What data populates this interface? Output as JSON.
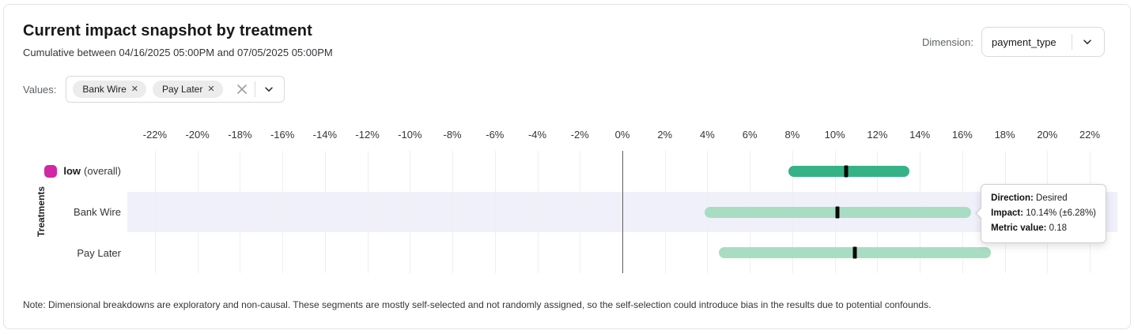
{
  "header": {
    "title": "Current impact snapshot by treatment",
    "subtitle": "Cumulative between 04/16/2025 05:00PM and 07/05/2025 05:00PM",
    "dimension_label": "Dimension:",
    "dimension_value": "payment_type"
  },
  "filters": {
    "values_label": "Values:",
    "chips": [
      "Bank Wire",
      "Pay Later"
    ]
  },
  "chart_data": {
    "type": "interval-bar",
    "y_axis_label": "Treatments",
    "x_tick_labels": [
      "-22%",
      "-20%",
      "-18%",
      "-16%",
      "-14%",
      "-12%",
      "-10%",
      "-8%",
      "-6%",
      "-4%",
      "-2%",
      "0%",
      "2%",
      "4%",
      "6%",
      "8%",
      "10%",
      "12%",
      "14%",
      "16%",
      "18%",
      "20%",
      "22%"
    ],
    "x_ticks": [
      -22,
      -20,
      -18,
      -16,
      -14,
      -12,
      -10,
      -8,
      -6,
      -4,
      -2,
      0,
      2,
      4,
      6,
      8,
      10,
      12,
      14,
      16,
      18,
      20,
      22
    ],
    "xlim": [
      -23.3,
      23.3
    ],
    "zero_line": 0,
    "grid": true,
    "rows": [
      {
        "name": "low",
        "name_suffix": "(overall)",
        "swatch_color": "#d028a6",
        "low": 7.8,
        "high": 13.5,
        "center": 10.55,
        "bar_color": "#36b287",
        "highlighted": false
      },
      {
        "name": "Bank Wire",
        "name_suffix": "",
        "swatch_color": "",
        "low": 3.86,
        "high": 16.42,
        "center": 10.14,
        "bar_color": "#a9ddc3",
        "highlighted": true
      },
      {
        "name": "Pay Later",
        "name_suffix": "",
        "swatch_color": "",
        "low": 4.55,
        "high": 17.35,
        "center": 10.95,
        "bar_color": "#a9ddc3",
        "highlighted": false
      }
    ]
  },
  "tooltip": {
    "row_index": 1,
    "lines": [
      {
        "label": "Direction:",
        "value": "Desired"
      },
      {
        "label": "Impact:",
        "value": "10.14% (±6.28%)"
      },
      {
        "label": "Metric value:",
        "value": "0.18"
      }
    ]
  },
  "note": "Note: Dimensional breakdowns are exploratory and non-causal. These segments are mostly self-selected and not randomly assigned, so the self-selection could introduce bias in the results due to potential confounds.",
  "colors": {
    "highlight_row": "#f0f0fb",
    "gridline": "#efefef",
    "zero_line": "#606060",
    "center_mark": "#0a0a0a",
    "overall_bar": "#36b287",
    "segment_bar": "#a9ddc3",
    "legend_swatch": "#d028a6"
  }
}
